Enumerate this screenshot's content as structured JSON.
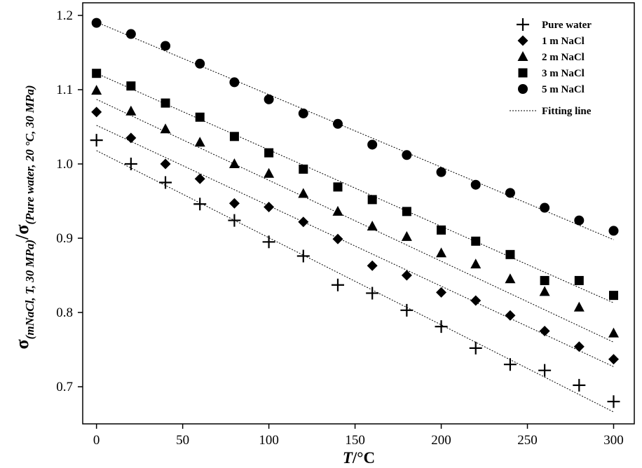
{
  "chart_data": {
    "type": "scatter",
    "xlabel": {
      "main": "T",
      "unit": "/°C"
    },
    "ylabel": {
      "sym": "σ",
      "sub1": "(mNaCl, T, 30 MPa)",
      "slash": "/",
      "sym2": "σ",
      "sub2": "(Pure water, 20 °C, 30 MPa)"
    },
    "xlim": [
      -8,
      312
    ],
    "ylim": [
      0.65,
      1.217
    ],
    "xticks": [
      0,
      50,
      100,
      150,
      200,
      250,
      300
    ],
    "yticks": [
      0.7,
      0.8,
      0.9,
      1.0,
      1.1,
      1.2
    ],
    "ytick_labels": [
      "0.7",
      "0.8",
      "0.9",
      "1.0",
      "1.1",
      "1.2"
    ],
    "legend_position": "top-right",
    "series": [
      {
        "name": "Pure water",
        "marker": "plus",
        "x": [
          0,
          20,
          40,
          60,
          80,
          100,
          120,
          140,
          160,
          180,
          200,
          220,
          240,
          260,
          280,
          300
        ],
        "y": [
          1.032,
          1.0,
          0.975,
          0.946,
          0.924,
          0.895,
          0.876,
          0.837,
          0.826,
          0.803,
          0.781,
          0.752,
          0.73,
          0.722,
          0.702,
          0.68
        ],
        "fit": [
          1.018,
          0.666
        ]
      },
      {
        "name": "1 m NaCl",
        "marker": "diamond",
        "x": [
          0,
          20,
          40,
          60,
          80,
          100,
          120,
          140,
          160,
          180,
          200,
          220,
          240,
          260,
          280,
          300
        ],
        "y": [
          1.07,
          1.035,
          1.0,
          0.98,
          0.947,
          0.942,
          0.922,
          0.899,
          0.863,
          0.85,
          0.827,
          0.816,
          0.796,
          0.775,
          0.754,
          0.737
        ],
        "fit": [
          1.052,
          0.727
        ]
      },
      {
        "name": "2 m NaCl",
        "marker": "triangle",
        "x": [
          0,
          20,
          40,
          60,
          80,
          100,
          120,
          140,
          160,
          180,
          200,
          220,
          240,
          260,
          280,
          300
        ],
        "y": [
          1.099,
          1.071,
          1.047,
          1.029,
          1.0,
          0.987,
          0.96,
          0.936,
          0.916,
          0.902,
          0.88,
          0.865,
          0.845,
          0.828,
          0.807,
          0.772
        ],
        "fit": [
          1.087,
          0.76
        ]
      },
      {
        "name": "3 m NaCl",
        "marker": "square",
        "x": [
          0,
          20,
          40,
          60,
          80,
          100,
          120,
          140,
          160,
          180,
          200,
          220,
          240,
          260,
          280,
          300
        ],
        "y": [
          1.122,
          1.105,
          1.082,
          1.063,
          1.037,
          1.015,
          0.993,
          0.969,
          0.952,
          0.936,
          0.911,
          0.896,
          0.878,
          0.843,
          0.843,
          0.823
        ],
        "fit": [
          1.122,
          0.813
        ]
      },
      {
        "name": "5 m NaCl",
        "marker": "circle",
        "x": [
          0,
          20,
          40,
          60,
          80,
          100,
          120,
          140,
          160,
          180,
          200,
          220,
          240,
          260,
          280,
          300
        ],
        "y": [
          1.19,
          1.175,
          1.159,
          1.135,
          1.11,
          1.087,
          1.068,
          1.054,
          1.026,
          1.012,
          0.989,
          0.972,
          0.961,
          0.941,
          0.924,
          0.91
        ],
        "fit": [
          1.191,
          0.898
        ]
      }
    ],
    "fit_legend_label": "Fitting line"
  }
}
